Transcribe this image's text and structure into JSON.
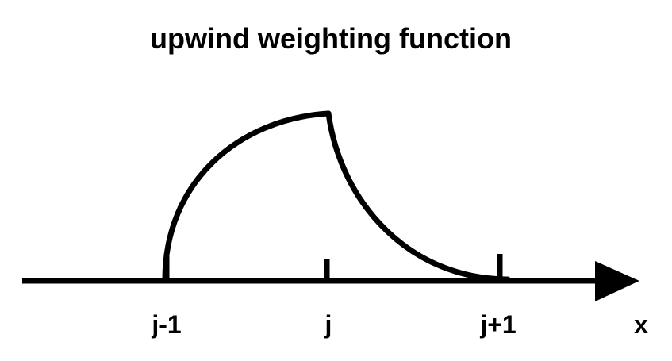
{
  "title": "upwind weighting function",
  "axis": {
    "label": "x",
    "ticks": [
      {
        "label": "j-1"
      },
      {
        "label": "j"
      },
      {
        "label": "j+1"
      }
    ]
  },
  "colors": {
    "stroke": "#000000",
    "background": "#ffffff"
  }
}
